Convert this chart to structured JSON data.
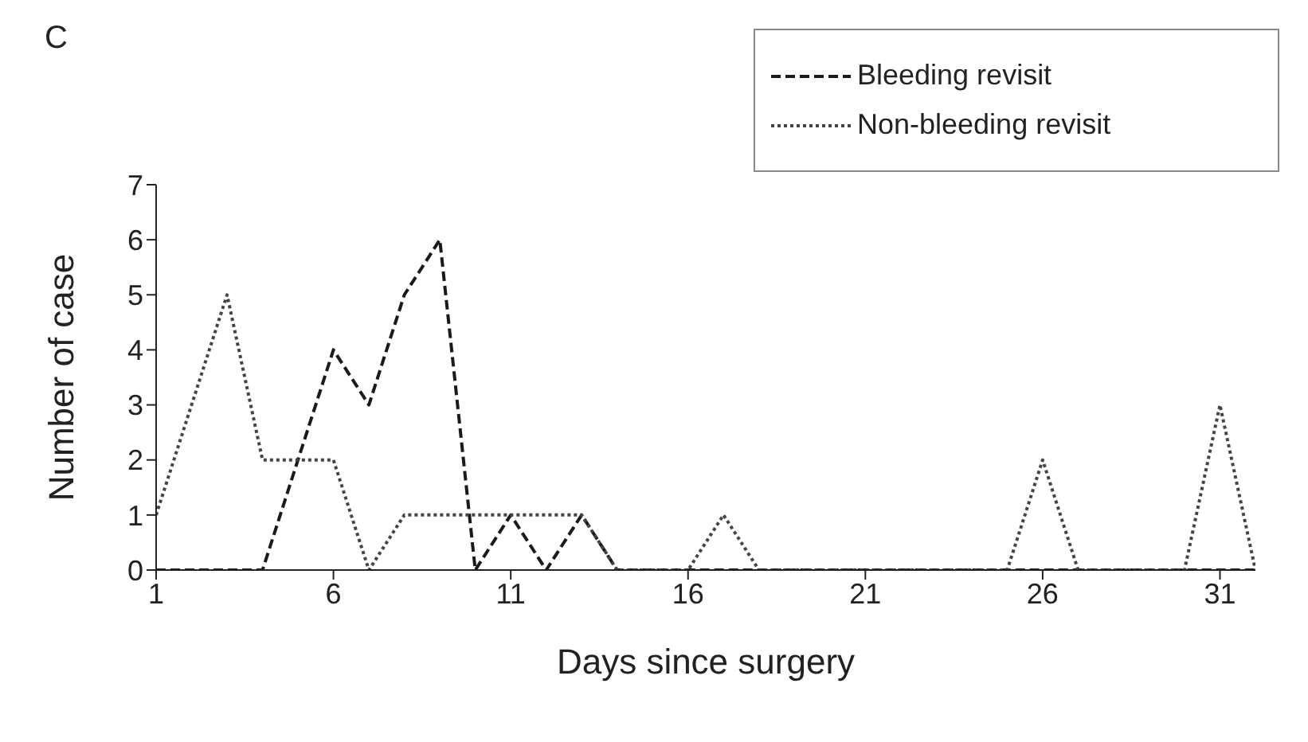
{
  "chart_data": {
    "type": "line",
    "annotations": [
      "C"
    ],
    "xlabel": "Days since surgery",
    "ylabel": "Number of case",
    "x": [
      1,
      2,
      3,
      4,
      5,
      6,
      7,
      8,
      9,
      10,
      11,
      12,
      13,
      14,
      15,
      16,
      17,
      18,
      19,
      20,
      21,
      22,
      23,
      24,
      25,
      26,
      27,
      28,
      29,
      30,
      31,
      32
    ],
    "series": [
      {
        "name": "Bleeding revisit",
        "color": "#1a1a1a",
        "line_style": "dashed",
        "values": [
          0,
          0,
          0,
          0,
          2,
          4,
          3,
          5,
          6,
          0,
          1,
          0,
          1,
          0,
          0,
          0,
          0,
          0,
          0,
          0,
          0,
          0,
          0,
          0,
          0,
          0,
          0,
          0,
          0,
          0,
          0,
          0
        ]
      },
      {
        "name": "Non-bleeding revisit",
        "color": "#444444",
        "line_style": "dotted",
        "values": [
          1,
          3,
          5,
          2,
          2,
          2,
          0,
          1,
          1,
          1,
          1,
          1,
          1,
          0,
          0,
          0,
          1,
          0,
          0,
          0,
          0,
          0,
          0,
          0,
          0,
          2,
          0,
          0,
          0,
          0,
          3,
          0
        ]
      }
    ],
    "xlim": [
      1,
      32
    ],
    "xticks": [
      1,
      6,
      11,
      16,
      21,
      26,
      31
    ],
    "ylim": [
      0,
      7
    ],
    "yticks": [
      0,
      1,
      2,
      3,
      4,
      5,
      6,
      7
    ],
    "grid": false,
    "legend": "top right",
    "marker": "none"
  }
}
